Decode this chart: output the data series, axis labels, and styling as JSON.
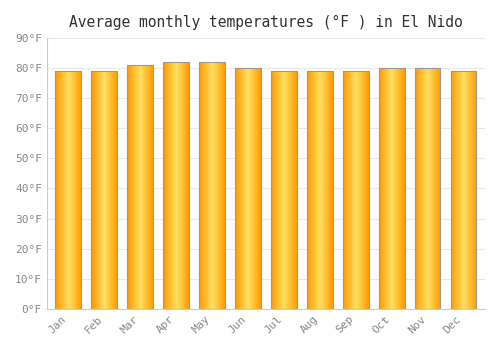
{
  "title": "Average monthly temperatures (°F ) in El Nido",
  "months": [
    "Jan",
    "Feb",
    "Mar",
    "Apr",
    "May",
    "Jun",
    "Jul",
    "Aug",
    "Sep",
    "Oct",
    "Nov",
    "Dec"
  ],
  "values": [
    79,
    79,
    81,
    82,
    82,
    80,
    79,
    79,
    79,
    80,
    80,
    79
  ],
  "bar_color_center": "#FFD966",
  "bar_color_edge": "#FFA500",
  "bar_outline_color": "#999999",
  "background_color": "#ffffff",
  "yticks": [
    0,
    10,
    20,
    30,
    40,
    50,
    60,
    70,
    80,
    90
  ],
  "ytick_labels": [
    "0°F",
    "10°F",
    "20°F",
    "30°F",
    "40°F",
    "50°F",
    "60°F",
    "70°F",
    "80°F",
    "90°F"
  ],
  "ylim": [
    0,
    90
  ],
  "grid_color": "#e8e8e8",
  "tick_color": "#888888",
  "title_fontsize": 10.5,
  "tick_fontsize": 8
}
